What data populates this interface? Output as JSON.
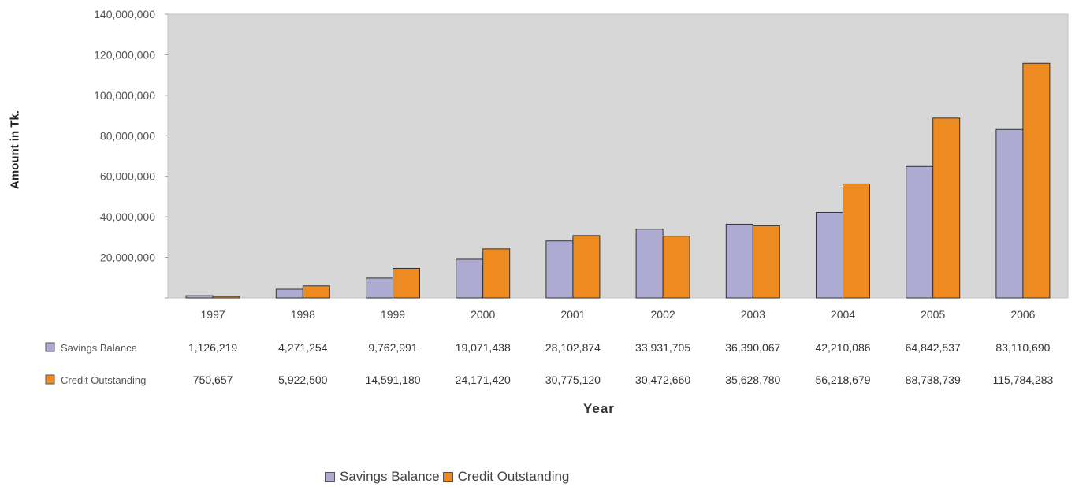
{
  "colors": {
    "savings": "#aeabd2",
    "credit": "#ee8b20",
    "plot_bg": "#d7d7d7"
  },
  "chart_data": {
    "type": "bar",
    "title": "",
    "xlabel": "Year",
    "ylabel": "Amount in Tk.",
    "ylim": [
      0,
      140000000
    ],
    "yticks": [
      0,
      20000000,
      40000000,
      60000000,
      80000000,
      100000000,
      120000000,
      140000000
    ],
    "ytick_labels": [
      "",
      "20,000,000",
      "40,000,000",
      "60,000,000",
      "80,000,000",
      "100,000,000",
      "120,000,000",
      "140,000,000"
    ],
    "categories": [
      "1997",
      "1998",
      "1999",
      "2000",
      "2001",
      "2002",
      "2003",
      "2004",
      "2005",
      "2006"
    ],
    "series": [
      {
        "name": "Savings Balance",
        "values": [
          1126219,
          4271254,
          9762991,
          19071438,
          28102874,
          33931705,
          36390067,
          42210086,
          64842537,
          83110690
        ]
      },
      {
        "name": "Credit Outstanding",
        "values": [
          750657,
          5922500,
          14591180,
          24171420,
          30775120,
          30472660,
          35628780,
          56218679,
          88738739,
          115784283
        ]
      }
    ],
    "data_table": {
      "rows": [
        [
          "1,126,219",
          "4,271,254",
          "9,762,991",
          "19,071,438",
          "28,102,874",
          "33,931,705",
          "36,390,067",
          "42,210,086",
          "64,842,537",
          "83,110,690"
        ],
        [
          "750,657",
          "5,922,500",
          "14,591,180",
          "24,171,420",
          "30,775,120",
          "30,472,660",
          "35,628,780",
          "56,218,679",
          "88,738,739",
          "115,784,283"
        ]
      ]
    },
    "grid": false,
    "legend": "bottom-center"
  }
}
